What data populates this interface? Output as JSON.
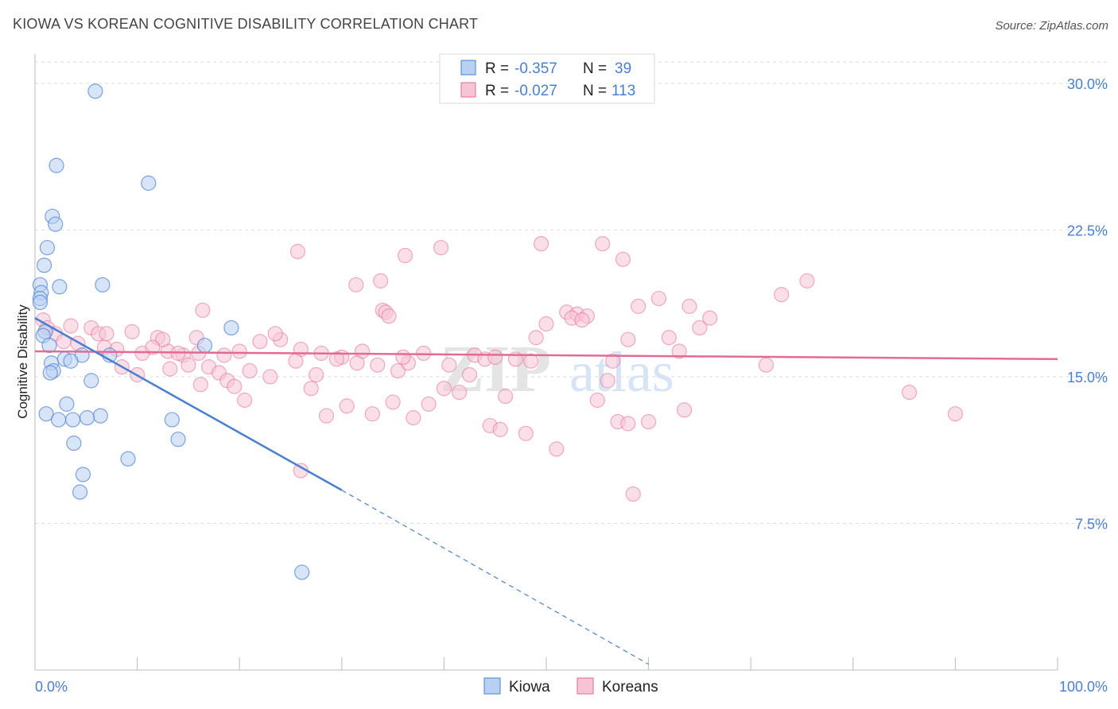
{
  "header": {
    "title": "KIOWA VS KOREAN COGNITIVE DISABILITY CORRELATION CHART",
    "source": "Source: ZipAtlas.com"
  },
  "colors": {
    "kiowa": "#4a7fd0",
    "kiowa_fill": "#b8d0f2",
    "koreans": "#e36b93",
    "koreans_fill": "#f7c4d5",
    "tick_label": "#4a7fd0",
    "grid": "#dddddd"
  },
  "watermark": {
    "zip": "ZIP",
    "atlas": "atlas"
  },
  "legend_top": {
    "rows": [
      {
        "r_label": "R =",
        "r_value": "-0.357",
        "n_label": "N =",
        "n_value": "39"
      },
      {
        "r_label": "R =",
        "r_value": "-0.027",
        "n_label": "N =",
        "n_value": "113"
      }
    ]
  },
  "legend_bottom": [
    "Kiowa",
    "Koreans"
  ],
  "chart_data": {
    "type": "scatter",
    "title": "KIOWA VS KOREAN COGNITIVE DISABILITY CORRELATION CHART",
    "xlabel": "",
    "ylabel": "Cognitive Disability",
    "xlim": [
      0,
      100
    ],
    "ylim": [
      0,
      31.5
    ],
    "x_tick_labels": [
      "0.0%",
      "100.0%"
    ],
    "y_ticks": [
      7.5,
      15.0,
      22.5,
      30.0
    ],
    "y_tick_labels": [
      "7.5%",
      "15.0%",
      "22.5%",
      "30.0%"
    ],
    "grid": true,
    "series": [
      {
        "name": "Kiowa",
        "r": -0.357,
        "n": 39,
        "trend": {
          "x0": 0.0,
          "y0": 18.0,
          "x1": 30.0,
          "y1": 9.2,
          "dashed_to_x": 60.0,
          "dashed_to_y": 0.3
        },
        "points": [
          [
            5.9,
            29.6
          ],
          [
            2.1,
            25.8
          ],
          [
            11.1,
            24.9
          ],
          [
            1.7,
            23.2
          ],
          [
            2.0,
            22.8
          ],
          [
            1.2,
            21.6
          ],
          [
            0.9,
            20.7
          ],
          [
            0.5,
            19.7
          ],
          [
            0.6,
            19.3
          ],
          [
            2.4,
            19.6
          ],
          [
            6.6,
            19.7
          ],
          [
            0.5,
            19.0
          ],
          [
            0.5,
            18.8
          ],
          [
            19.2,
            17.5
          ],
          [
            1.0,
            17.3
          ],
          [
            0.8,
            17.1
          ],
          [
            1.4,
            16.6
          ],
          [
            16.6,
            16.6
          ],
          [
            7.3,
            16.1
          ],
          [
            4.6,
            16.1
          ],
          [
            2.9,
            15.9
          ],
          [
            3.5,
            15.8
          ],
          [
            1.6,
            15.7
          ],
          [
            1.8,
            15.3
          ],
          [
            1.5,
            15.2
          ],
          [
            5.5,
            14.8
          ],
          [
            3.1,
            13.6
          ],
          [
            1.1,
            13.1
          ],
          [
            6.4,
            13.0
          ],
          [
            5.1,
            12.9
          ],
          [
            2.3,
            12.8
          ],
          [
            3.7,
            12.8
          ],
          [
            13.4,
            12.8
          ],
          [
            3.8,
            11.6
          ],
          [
            14.0,
            11.8
          ],
          [
            9.1,
            10.8
          ],
          [
            4.7,
            10.0
          ],
          [
            4.4,
            9.1
          ],
          [
            26.1,
            5.0
          ]
        ]
      },
      {
        "name": "Koreans",
        "r": -0.027,
        "n": 113,
        "trend": {
          "x0": 0.0,
          "y0": 16.3,
          "x1": 100.0,
          "y1": 15.9
        },
        "points": [
          [
            0.8,
            17.9
          ],
          [
            1.2,
            17.5
          ],
          [
            2.0,
            17.2
          ],
          [
            3.5,
            17.6
          ],
          [
            5.5,
            17.5
          ],
          [
            6.2,
            17.2
          ],
          [
            7.0,
            17.2
          ],
          [
            9.5,
            17.3
          ],
          [
            12.0,
            17.0
          ],
          [
            2.8,
            16.8
          ],
          [
            4.2,
            16.7
          ],
          [
            6.8,
            16.5
          ],
          [
            8.0,
            16.4
          ],
          [
            10.5,
            16.2
          ],
          [
            13.0,
            16.3
          ],
          [
            14.5,
            16.1
          ],
          [
            16.0,
            16.2
          ],
          [
            18.5,
            16.1
          ],
          [
            20.0,
            16.3
          ],
          [
            22.0,
            16.8
          ],
          [
            24.0,
            16.9
          ],
          [
            26.0,
            16.4
          ],
          [
            28.0,
            16.2
          ],
          [
            30.0,
            16.0
          ],
          [
            32.0,
            16.3
          ],
          [
            8.5,
            15.5
          ],
          [
            10.0,
            15.1
          ],
          [
            13.2,
            15.4
          ],
          [
            15.0,
            15.6
          ],
          [
            17.0,
            15.5
          ],
          [
            18.0,
            15.2
          ],
          [
            21.0,
            15.3
          ],
          [
            23.0,
            15.0
          ],
          [
            25.5,
            15.8
          ],
          [
            27.5,
            15.1
          ],
          [
            29.5,
            15.9
          ],
          [
            31.5,
            15.7
          ],
          [
            33.5,
            15.6
          ],
          [
            35.5,
            15.3
          ],
          [
            36.5,
            15.7
          ],
          [
            12.5,
            16.9
          ],
          [
            15.8,
            17.0
          ],
          [
            18.8,
            14.8
          ],
          [
            19.5,
            14.5
          ],
          [
            16.2,
            14.6
          ],
          [
            20.5,
            13.8
          ],
          [
            23.5,
            17.2
          ],
          [
            27.0,
            14.4
          ],
          [
            28.5,
            13.0
          ],
          [
            30.5,
            13.5
          ],
          [
            33.0,
            13.1
          ],
          [
            35.0,
            13.7
          ],
          [
            37.0,
            12.9
          ],
          [
            38.5,
            13.6
          ],
          [
            40.0,
            14.4
          ],
          [
            41.5,
            14.2
          ],
          [
            42.5,
            15.1
          ],
          [
            44.5,
            12.5
          ],
          [
            46.0,
            14.0
          ],
          [
            48.0,
            12.1
          ],
          [
            49.0,
            17.0
          ],
          [
            50.0,
            17.7
          ],
          [
            51.0,
            11.3
          ],
          [
            52.0,
            18.3
          ],
          [
            53.0,
            18.2
          ],
          [
            54.0,
            18.1
          ],
          [
            55.0,
            13.8
          ],
          [
            56.0,
            14.8
          ],
          [
            57.0,
            12.7
          ],
          [
            57.5,
            21.0
          ],
          [
            58.0,
            16.9
          ],
          [
            59.0,
            18.6
          ],
          [
            60.0,
            12.7
          ],
          [
            61.0,
            19.0
          ],
          [
            62.0,
            17.0
          ],
          [
            63.0,
            16.3
          ],
          [
            64.0,
            18.6
          ],
          [
            65.0,
            17.5
          ],
          [
            66.0,
            18.0
          ],
          [
            16.4,
            18.4
          ],
          [
            25.7,
            21.4
          ],
          [
            31.4,
            19.7
          ],
          [
            33.8,
            19.9
          ],
          [
            36.2,
            21.2
          ],
          [
            39.7,
            21.6
          ],
          [
            49.5,
            21.8
          ],
          [
            34.0,
            18.4
          ],
          [
            34.3,
            18.3
          ],
          [
            34.6,
            18.1
          ],
          [
            36.0,
            16.0
          ],
          [
            38.0,
            16.2
          ],
          [
            40.5,
            15.6
          ],
          [
            43.0,
            16.1
          ],
          [
            44.0,
            15.9
          ],
          [
            45.0,
            16.0
          ],
          [
            47.0,
            15.9
          ],
          [
            48.5,
            15.8
          ],
          [
            52.5,
            18.0
          ],
          [
            53.5,
            17.9
          ],
          [
            55.5,
            21.8
          ],
          [
            56.5,
            15.8
          ],
          [
            58.5,
            9.0
          ],
          [
            26.0,
            10.2
          ],
          [
            58.0,
            12.6
          ],
          [
            73.0,
            19.2
          ],
          [
            75.5,
            19.9
          ],
          [
            71.5,
            15.6
          ],
          [
            85.5,
            14.2
          ],
          [
            90.0,
            13.1
          ],
          [
            63.5,
            13.3
          ],
          [
            45.5,
            12.3
          ],
          [
            14.0,
            16.2
          ],
          [
            11.5,
            16.5
          ]
        ]
      }
    ]
  }
}
